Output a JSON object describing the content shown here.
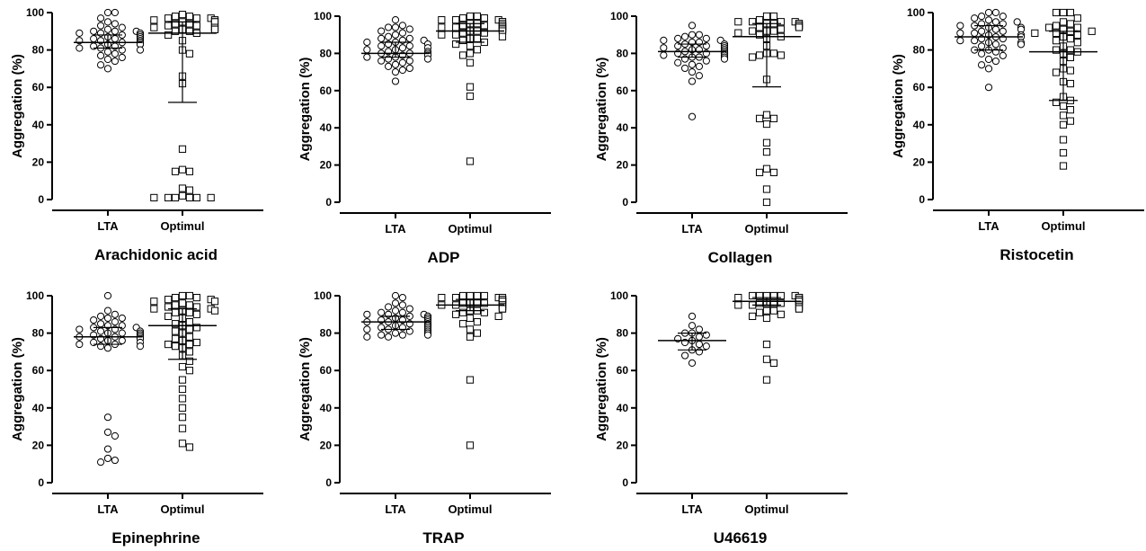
{
  "chart_data": [
    {
      "type": "scatter",
      "title": "Arachidonic acid",
      "ylabel": "Aggregation (%)",
      "categories": [
        "LTA",
        "Optimul"
      ],
      "ylim": [
        0,
        100
      ],
      "yticks": [
        0,
        20,
        40,
        60,
        80,
        100
      ],
      "grid": false,
      "series": [
        {
          "name": "LTA",
          "marker": "circle",
          "values": [
            100,
            100,
            97,
            95,
            94,
            93,
            92,
            91,
            90,
            90,
            90,
            89,
            89,
            89,
            88,
            88,
            88,
            87,
            87,
            87,
            86,
            86,
            86,
            85,
            85,
            85,
            85,
            84,
            84,
            84,
            84,
            83,
            83,
            83,
            82,
            82,
            81,
            81,
            80,
            80,
            79,
            78,
            77,
            76,
            75,
            74,
            72,
            70
          ],
          "median": 84,
          "iqr": [
            81,
            88
          ]
        },
        {
          "name": "Optimul",
          "marker": "square",
          "values": [
            99,
            98,
            98,
            97,
            97,
            97,
            96,
            96,
            96,
            95,
            95,
            95,
            94,
            94,
            93,
            93,
            92,
            92,
            92,
            91,
            91,
            91,
            90,
            90,
            89,
            88,
            85,
            80,
            78,
            66,
            62,
            27,
            16,
            15,
            15,
            6,
            5,
            2,
            1,
            1,
            1,
            1,
            1,
            1
          ],
          "median": 89,
          "iqr": [
            52,
            95
          ]
        }
      ]
    },
    {
      "type": "scatter",
      "title": "ADP",
      "ylabel": "Aggregation (%)",
      "categories": [
        "LTA",
        "Optimul"
      ],
      "ylim": [
        0,
        100
      ],
      "yticks": [
        0,
        20,
        40,
        60,
        80,
        100
      ],
      "grid": false,
      "series": [
        {
          "name": "LTA",
          "marker": "circle",
          "values": [
            98,
            95,
            94,
            94,
            93,
            92,
            91,
            90,
            89,
            88,
            88,
            87,
            87,
            86,
            86,
            85,
            85,
            84,
            84,
            83,
            83,
            82,
            82,
            81,
            81,
            80,
            80,
            80,
            79,
            79,
            79,
            78,
            78,
            77,
            77,
            76,
            76,
            75,
            74,
            73,
            72,
            71,
            70,
            65
          ],
          "median": 80,
          "iqr": [
            78,
            86
          ]
        },
        {
          "name": "Optimul",
          "marker": "square",
          "values": [
            100,
            100,
            99,
            99,
            98,
            98,
            98,
            97,
            97,
            96,
            96,
            96,
            95,
            95,
            95,
            95,
            94,
            94,
            94,
            94,
            93,
            93,
            93,
            93,
            92,
            92,
            92,
            91,
            91,
            90,
            90,
            89,
            88,
            88,
            87,
            86,
            85,
            84,
            82,
            80,
            79,
            75,
            62,
            57,
            22
          ],
          "median": 92,
          "iqr": [
            86,
            96
          ]
        }
      ]
    },
    {
      "type": "scatter",
      "title": "Collagen",
      "ylabel": "Aggregation (%)",
      "categories": [
        "LTA",
        "Optimul"
      ],
      "ylim": [
        0,
        100
      ],
      "yticks": [
        0,
        20,
        40,
        60,
        80,
        100
      ],
      "grid": false,
      "series": [
        {
          "name": "LTA",
          "marker": "circle",
          "values": [
            95,
            90,
            90,
            89,
            88,
            88,
            87,
            87,
            86,
            86,
            85,
            85,
            84,
            84,
            84,
            83,
            83,
            82,
            82,
            82,
            81,
            81,
            81,
            80,
            80,
            80,
            80,
            79,
            79,
            78,
            78,
            78,
            77,
            77,
            76,
            75,
            74,
            73,
            72,
            70,
            68,
            65,
            46
          ],
          "median": 81,
          "iqr": [
            78,
            85
          ]
        },
        {
          "name": "Optimul",
          "marker": "square",
          "values": [
            100,
            100,
            98,
            97,
            97,
            97,
            97,
            96,
            96,
            96,
            96,
            95,
            95,
            95,
            94,
            94,
            94,
            93,
            92,
            92,
            92,
            91,
            90,
            89,
            88,
            84,
            80,
            80,
            79,
            79,
            78,
            66,
            47,
            45,
            45,
            42,
            32,
            27,
            18,
            16,
            16,
            7,
            0
          ],
          "median": 89,
          "iqr": [
            62,
            96
          ]
        }
      ]
    },
    {
      "type": "scatter",
      "title": "Ristocetin",
      "ylabel": "Aggregation (%)",
      "categories": [
        "LTA",
        "Optimul"
      ],
      "ylim": [
        0,
        100
      ],
      "yticks": [
        0,
        20,
        40,
        60,
        80,
        100
      ],
      "grid": false,
      "series": [
        {
          "name": "LTA",
          "marker": "circle",
          "values": [
            100,
            100,
            98,
            98,
            97,
            96,
            95,
            95,
            94,
            94,
            93,
            93,
            92,
            92,
            91,
            91,
            90,
            90,
            89,
            89,
            88,
            88,
            88,
            87,
            87,
            86,
            86,
            85,
            85,
            84,
            84,
            83,
            83,
            82,
            81,
            80,
            80,
            79,
            78,
            77,
            75,
            74,
            72,
            70,
            60
          ],
          "median": 87,
          "iqr": [
            80,
            93
          ]
        },
        {
          "name": "Optimul",
          "marker": "square",
          "values": [
            100,
            100,
            100,
            97,
            95,
            94,
            93,
            92,
            92,
            91,
            90,
            90,
            89,
            89,
            88,
            87,
            86,
            85,
            84,
            82,
            80,
            80,
            79,
            78,
            76,
            74,
            70,
            69,
            68,
            63,
            62,
            55,
            53,
            52,
            50,
            48,
            45,
            42,
            40,
            32,
            25,
            18
          ],
          "median": 79,
          "iqr": [
            53,
            90
          ]
        }
      ]
    },
    {
      "type": "scatter",
      "title": "Epinephrine",
      "ylabel": "Aggregation (%)",
      "categories": [
        "LTA",
        "Optimul"
      ],
      "ylim": [
        0,
        100
      ],
      "yticks": [
        0,
        20,
        40,
        60,
        80,
        100
      ],
      "grid": false,
      "series": [
        {
          "name": "LTA",
          "marker": "circle",
          "values": [
            100,
            92,
            90,
            89,
            88,
            88,
            87,
            86,
            85,
            84,
            84,
            83,
            83,
            82,
            82,
            81,
            81,
            80,
            80,
            80,
            79,
            79,
            79,
            78,
            78,
            78,
            77,
            77,
            77,
            76,
            76,
            75,
            75,
            74,
            74,
            73,
            73,
            72,
            35,
            27,
            25,
            18,
            13,
            12,
            11
          ],
          "median": 78,
          "iqr": [
            74,
            83
          ]
        },
        {
          "name": "Optimul",
          "marker": "square",
          "values": [
            100,
            100,
            99,
            99,
            98,
            98,
            97,
            97,
            96,
            95,
            95,
            94,
            94,
            93,
            93,
            92,
            92,
            91,
            91,
            90,
            89,
            88,
            86,
            85,
            84,
            83,
            82,
            81,
            80,
            78,
            77,
            76,
            75,
            74,
            74,
            73,
            72,
            70,
            68,
            65,
            62,
            60,
            55,
            50,
            45,
            40,
            35,
            29,
            21,
            19
          ],
          "median": 84,
          "iqr": [
            66,
            93
          ]
        }
      ]
    },
    {
      "type": "scatter",
      "title": "TRAP",
      "ylabel": "Aggregation (%)",
      "categories": [
        "LTA",
        "Optimul"
      ],
      "ylim": [
        0,
        100
      ],
      "yticks": [
        0,
        20,
        40,
        60,
        80,
        100
      ],
      "grid": false,
      "series": [
        {
          "name": "LTA",
          "marker": "circle",
          "values": [
            100,
            99,
            96,
            95,
            94,
            93,
            92,
            91,
            91,
            90,
            90,
            90,
            89,
            89,
            89,
            88,
            88,
            88,
            87,
            87,
            87,
            86,
            86,
            86,
            85,
            85,
            85,
            85,
            84,
            84,
            84,
            83,
            83,
            83,
            82,
            82,
            82,
            81,
            81,
            80,
            80,
            80,
            79,
            79,
            79,
            78,
            78
          ],
          "median": 86,
          "iqr": [
            82,
            89
          ]
        },
        {
          "name": "Optimul",
          "marker": "square",
          "values": [
            100,
            100,
            100,
            100,
            99,
            99,
            99,
            99,
            98,
            98,
            98,
            98,
            97,
            97,
            97,
            97,
            96,
            96,
            96,
            96,
            95,
            95,
            95,
            95,
            94,
            94,
            93,
            93,
            92,
            92,
            91,
            91,
            90,
            89,
            88,
            86,
            85,
            82,
            80,
            78,
            55,
            20
          ],
          "median": 95,
          "iqr": [
            92,
            98
          ]
        }
      ]
    },
    {
      "type": "scatter",
      "title": "U46619",
      "ylabel": "Aggregation (%)",
      "categories": [
        "LTA",
        "Optimul"
      ],
      "ylim": [
        0,
        100
      ],
      "yticks": [
        0,
        20,
        40,
        60,
        80,
        100
      ],
      "grid": false,
      "series": [
        {
          "name": "LTA",
          "marker": "circle",
          "values": [
            89,
            84,
            82,
            80,
            80,
            79,
            78,
            77,
            76,
            75,
            74,
            73,
            71,
            70,
            68,
            64
          ],
          "median": 76,
          "iqr": [
            71,
            80
          ]
        },
        {
          "name": "Optimul",
          "marker": "square",
          "values": [
            100,
            100,
            100,
            100,
            100,
            100,
            99,
            99,
            99,
            99,
            99,
            98,
            98,
            98,
            98,
            98,
            97,
            97,
            97,
            97,
            96,
            96,
            96,
            96,
            95,
            95,
            95,
            94,
            94,
            93,
            93,
            92,
            92,
            91,
            90,
            89,
            88,
            74,
            66,
            64,
            55
          ],
          "median": 97,
          "iqr": [
            95,
            99
          ]
        }
      ]
    }
  ]
}
